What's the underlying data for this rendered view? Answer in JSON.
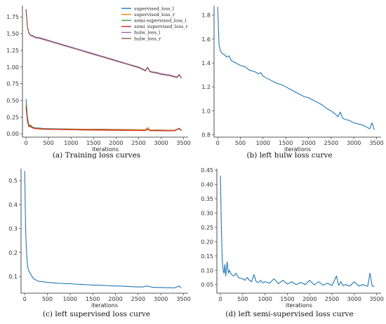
{
  "chart_data": [
    {
      "type": "line",
      "caption": "(a) Training loss curves",
      "xlabel": "iterations",
      "xlim": [
        -80,
        3600
      ],
      "ylim": [
        -0.05,
        1.92
      ],
      "xticks": [
        0,
        500,
        1000,
        1500,
        2000,
        2500,
        3000,
        3500
      ],
      "yticks": [
        0.0,
        0.25,
        0.5,
        0.75,
        1.0,
        1.25,
        1.5,
        1.75
      ],
      "ytick_decimals": 2,
      "grid": false,
      "legend": "top-right",
      "series": [
        {
          "name": "supervised_loss_l",
          "color": "#1f77b4",
          "x": [
            0,
            30,
            60,
            100,
            150,
            200,
            300,
            400,
            500,
            700,
            900,
            1100,
            1300,
            1500,
            1700,
            1900,
            2100,
            2300,
            2500,
            2650,
            2700,
            2750,
            2900,
            3100,
            3300,
            3400,
            3450
          ],
          "y": [
            0.52,
            0.25,
            0.14,
            0.11,
            0.1,
            0.09,
            0.085,
            0.08,
            0.078,
            0.076,
            0.074,
            0.072,
            0.071,
            0.07,
            0.069,
            0.067,
            0.066,
            0.064,
            0.062,
            0.061,
            0.09,
            0.06,
            0.058,
            0.056,
            0.055,
            0.08,
            0.055
          ]
        },
        {
          "name": "supervised_loss_r",
          "color": "#ff7f0e",
          "x": [
            0,
            30,
            60,
            100,
            150,
            200,
            300,
            400,
            500,
            700,
            900,
            1100,
            1300,
            1500,
            1700,
            1900,
            2100,
            2300,
            2500,
            2650,
            2700,
            2750,
            2900,
            3100,
            3300,
            3400,
            3450
          ],
          "y": [
            0.45,
            0.22,
            0.12,
            0.1,
            0.09,
            0.085,
            0.08,
            0.075,
            0.073,
            0.071,
            0.07,
            0.068,
            0.067,
            0.066,
            0.065,
            0.064,
            0.063,
            0.062,
            0.06,
            0.058,
            0.095,
            0.058,
            0.056,
            0.055,
            0.053,
            0.075,
            0.053
          ]
        },
        {
          "name": "semi-supervised_loss_l",
          "color": "#2ca02c",
          "x": [
            0,
            30,
            60,
            100,
            150,
            200,
            300,
            400,
            500,
            700,
            900,
            1100,
            1300,
            1500,
            1700,
            1900,
            2100,
            2300,
            2500,
            2650,
            2700,
            2750,
            2900,
            3100,
            3300,
            3400,
            3450
          ],
          "y": [
            0.43,
            0.2,
            0.12,
            0.13,
            0.09,
            0.08,
            0.075,
            0.07,
            0.068,
            0.065,
            0.063,
            0.06,
            0.058,
            0.057,
            0.055,
            0.054,
            0.053,
            0.052,
            0.05,
            0.049,
            0.07,
            0.048,
            0.047,
            0.046,
            0.045,
            0.085,
            0.045
          ]
        },
        {
          "name": "semi_supervised_loss_r",
          "color": "#d62728",
          "x": [
            0,
            30,
            60,
            100,
            150,
            200,
            300,
            400,
            500,
            700,
            900,
            1100,
            1300,
            1500,
            1700,
            1900,
            2100,
            2300,
            2500,
            2650,
            2700,
            2750,
            2900,
            3100,
            3300,
            3400,
            3450
          ],
          "y": [
            0.4,
            0.19,
            0.11,
            0.12,
            0.085,
            0.078,
            0.073,
            0.068,
            0.066,
            0.064,
            0.062,
            0.06,
            0.058,
            0.056,
            0.054,
            0.053,
            0.052,
            0.051,
            0.049,
            0.048,
            0.068,
            0.047,
            0.046,
            0.045,
            0.044,
            0.08,
            0.044
          ]
        },
        {
          "name": "hulw_loss_l",
          "color": "#9467bd",
          "x": [
            0,
            30,
            60,
            100,
            150,
            200,
            300,
            400,
            500,
            600,
            700,
            800,
            900,
            1000,
            1100,
            1200,
            1300,
            1400,
            1500,
            1600,
            1700,
            1800,
            1900,
            2000,
            2100,
            2200,
            2300,
            2400,
            2500,
            2600,
            2650,
            2700,
            2750,
            2800,
            2900,
            3000,
            3100,
            3200,
            3300,
            3350,
            3400,
            3450
          ],
          "y": [
            1.87,
            1.6,
            1.52,
            1.48,
            1.47,
            1.45,
            1.44,
            1.42,
            1.4,
            1.38,
            1.36,
            1.34,
            1.32,
            1.3,
            1.28,
            1.26,
            1.24,
            1.22,
            1.2,
            1.18,
            1.16,
            1.14,
            1.12,
            1.1,
            1.08,
            1.06,
            1.04,
            1.02,
            1.0,
            0.97,
            0.95,
            1.0,
            0.94,
            0.93,
            0.92,
            0.9,
            0.89,
            0.88,
            0.86,
            0.85,
            0.89,
            0.84
          ]
        },
        {
          "name": "hulw_loss_r",
          "color": "#8c564b",
          "x": [
            0,
            30,
            60,
            100,
            150,
            200,
            300,
            400,
            500,
            600,
            700,
            800,
            900,
            1000,
            1100,
            1200,
            1300,
            1400,
            1500,
            1600,
            1700,
            1800,
            1900,
            2000,
            2100,
            2200,
            2300,
            2400,
            2500,
            2600,
            2650,
            2700,
            2750,
            2800,
            2900,
            3000,
            3100,
            3200,
            3300,
            3350,
            3400,
            3450
          ],
          "y": [
            1.86,
            1.59,
            1.51,
            1.47,
            1.46,
            1.44,
            1.43,
            1.41,
            1.39,
            1.37,
            1.35,
            1.33,
            1.31,
            1.29,
            1.27,
            1.25,
            1.23,
            1.21,
            1.19,
            1.17,
            1.15,
            1.13,
            1.11,
            1.09,
            1.07,
            1.05,
            1.03,
            1.01,
            0.99,
            0.96,
            0.94,
            0.99,
            0.93,
            0.92,
            0.91,
            0.89,
            0.88,
            0.87,
            0.85,
            0.84,
            0.88,
            0.83
          ]
        }
      ]
    },
    {
      "type": "line",
      "caption": "(b) left hulw loss curve",
      "xlabel": "iterations",
      "xlim": [
        -80,
        3600
      ],
      "ylim": [
        0.78,
        1.88
      ],
      "xticks": [
        0,
        500,
        1000,
        1500,
        2000,
        2500,
        3000,
        3500
      ],
      "yticks": [
        0.8,
        1.0,
        1.2,
        1.4,
        1.6,
        1.8
      ],
      "ytick_decimals": 1,
      "grid": false,
      "series": [
        {
          "name": "",
          "color": "#1f77b4",
          "x": [
            0,
            30,
            60,
            100,
            150,
            200,
            250,
            300,
            400,
            500,
            600,
            700,
            800,
            900,
            950,
            1000,
            1100,
            1200,
            1300,
            1400,
            1500,
            1600,
            1700,
            1800,
            1900,
            2000,
            2100,
            2200,
            2300,
            2400,
            2500,
            2600,
            2650,
            2700,
            2750,
            2800,
            2900,
            3000,
            3100,
            3200,
            3300,
            3350,
            3400,
            3450
          ],
          "y": [
            1.87,
            1.55,
            1.5,
            1.48,
            1.47,
            1.45,
            1.46,
            1.42,
            1.4,
            1.38,
            1.37,
            1.34,
            1.33,
            1.31,
            1.32,
            1.29,
            1.27,
            1.25,
            1.23,
            1.22,
            1.2,
            1.18,
            1.16,
            1.14,
            1.12,
            1.11,
            1.09,
            1.07,
            1.05,
            1.02,
            1.0,
            0.97,
            0.95,
            0.99,
            0.94,
            0.93,
            0.92,
            0.9,
            0.89,
            0.88,
            0.86,
            0.85,
            0.9,
            0.84
          ]
        }
      ]
    },
    {
      "type": "line",
      "caption": "(c) left supervised loss curve",
      "xlabel": "iterations",
      "xlim": [
        -80,
        3600
      ],
      "ylim": [
        0.03,
        0.55
      ],
      "xticks": [
        0,
        500,
        1000,
        1500,
        2000,
        2500,
        3000,
        3500
      ],
      "yticks": [
        0.1,
        0.2,
        0.3,
        0.4,
        0.5
      ],
      "ytick_decimals": 1,
      "grid": false,
      "series": [
        {
          "name": "",
          "color": "#1f77b4",
          "x": [
            0,
            20,
            40,
            60,
            80,
            100,
            130,
            160,
            200,
            250,
            300,
            400,
            500,
            600,
            700,
            800,
            900,
            1000,
            1100,
            1200,
            1300,
            1400,
            1500,
            1600,
            1700,
            1800,
            1900,
            2000,
            2100,
            2200,
            2300,
            2400,
            2500,
            2600,
            2700,
            2800,
            2900,
            3000,
            3100,
            3200,
            3300,
            3400,
            3450
          ],
          "y": [
            0.54,
            0.3,
            0.2,
            0.15,
            0.13,
            0.12,
            0.11,
            0.1,
            0.09,
            0.085,
            0.08,
            0.078,
            0.075,
            0.074,
            0.072,
            0.071,
            0.07,
            0.07,
            0.068,
            0.067,
            0.066,
            0.065,
            0.064,
            0.064,
            0.063,
            0.062,
            0.061,
            0.06,
            0.06,
            0.059,
            0.058,
            0.057,
            0.056,
            0.056,
            0.06,
            0.055,
            0.054,
            0.054,
            0.053,
            0.053,
            0.052,
            0.06,
            0.052
          ]
        }
      ]
    },
    {
      "type": "line",
      "caption": "(d) left semi-supervised loss curve",
      "xlabel": "iterations",
      "xlim": [
        -80,
        3600
      ],
      "ylim": [
        0.02,
        0.455
      ],
      "xticks": [
        0,
        500,
        1000,
        1500,
        2000,
        2500,
        3000,
        3500
      ],
      "yticks": [
        0.05,
        0.1,
        0.15,
        0.2,
        0.25,
        0.3,
        0.35,
        0.4,
        0.45
      ],
      "ytick_decimals": 2,
      "grid": false,
      "series": [
        {
          "name": "",
          "color": "#1f77b4",
          "x": [
            0,
            20,
            40,
            60,
            80,
            100,
            120,
            150,
            180,
            200,
            250,
            300,
            350,
            400,
            450,
            500,
            550,
            600,
            650,
            700,
            750,
            800,
            850,
            900,
            950,
            1000,
            1100,
            1200,
            1300,
            1400,
            1500,
            1600,
            1700,
            1800,
            1900,
            2000,
            2100,
            2200,
            2300,
            2400,
            2500,
            2600,
            2650,
            2700,
            2750,
            2800,
            2900,
            3000,
            3100,
            3200,
            3300,
            3350,
            3400,
            3450
          ],
          "y": [
            0.43,
            0.25,
            0.14,
            0.1,
            0.09,
            0.12,
            0.08,
            0.13,
            0.09,
            0.1,
            0.085,
            0.08,
            0.09,
            0.075,
            0.072,
            0.07,
            0.065,
            0.075,
            0.065,
            0.06,
            0.085,
            0.06,
            0.058,
            0.065,
            0.056,
            0.06,
            0.055,
            0.07,
            0.053,
            0.065,
            0.052,
            0.06,
            0.05,
            0.058,
            0.05,
            0.065,
            0.049,
            0.06,
            0.048,
            0.055,
            0.047,
            0.08,
            0.047,
            0.06,
            0.046,
            0.05,
            0.045,
            0.06,
            0.045,
            0.05,
            0.044,
            0.09,
            0.045,
            0.044
          ]
        }
      ]
    }
  ]
}
